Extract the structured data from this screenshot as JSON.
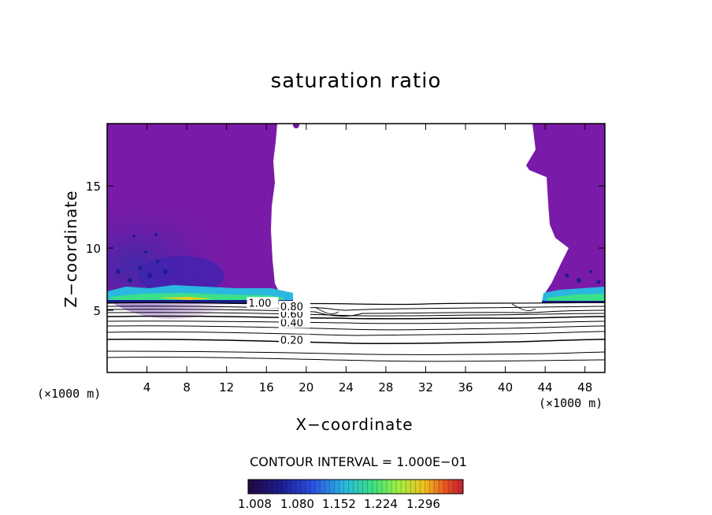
{
  "chart_data": {
    "type": "heatmap",
    "title": "saturation ratio",
    "xlabel": "X−coordinate",
    "ylabel": "Z−coordinate",
    "x_unit_left": "(×1000 m)",
    "x_unit_right": "(×1000 m)",
    "xlim": [
      0,
      50
    ],
    "ylim": [
      0,
      20
    ],
    "xticks": [
      4,
      8,
      12,
      16,
      20,
      24,
      28,
      32,
      36,
      40,
      44,
      48
    ],
    "yticks": [
      5,
      10,
      15
    ],
    "contour_labels": [
      {
        "text": "0.20",
        "x": 17.4,
        "z": 2.3
      },
      {
        "text": "0.40",
        "x": 17.4,
        "z": 3.7
      },
      {
        "text": "0.60",
        "x": 17.4,
        "z": 4.4
      },
      {
        "text": "0.80",
        "x": 17.4,
        "z": 5.0
      },
      {
        "text": "1.00",
        "x": 14.2,
        "z": 5.3
      }
    ],
    "contour_interval_text": "CONTOUR INTERVAL = 1.000E−01",
    "colorbar": {
      "min": 1.0,
      "max": 1.32,
      "tick_labels": [
        "1.008",
        "1.080",
        "1.152",
        "1.224",
        "1.296"
      ],
      "colors": [
        "#2a0a4e",
        "#1a1a8a",
        "#2a3ae0",
        "#2ab0e8",
        "#3ae08a",
        "#8ef04a",
        "#e0e020",
        "#f09020",
        "#e03020",
        "#c02030"
      ]
    },
    "fill_color": "#7a1aa8",
    "grid": false
  }
}
